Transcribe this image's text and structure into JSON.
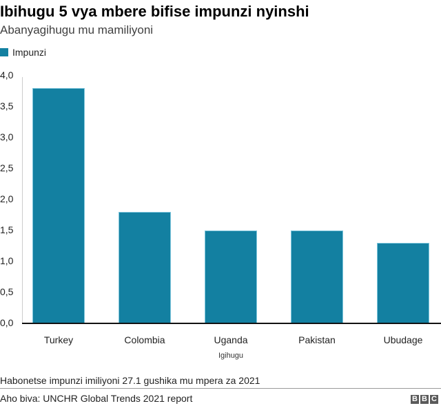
{
  "header": {
    "title": "Ibihugu 5 vya mbere bifise impunzi nyinshi",
    "subtitle": "Abanyagihugu mu mamiliyoni"
  },
  "legend": {
    "label": "Impunzi",
    "color": "#1380a1"
  },
  "footer": {
    "note": "Habonetse impunzi imiliyoni 27.1 gushika mu mpera za 2021",
    "source": "Aho biva: UNCHR Global Trends 2021 report",
    "logo_letters": [
      "B",
      "B",
      "C"
    ]
  },
  "chart_data": {
    "type": "bar",
    "title": "Ibihugu 5 vya mbere bifise impunzi nyinshi",
    "subtitle": "Abanyagihugu mu mamiliyoni",
    "categories": [
      "Turkey",
      "Colombia",
      "Uganda",
      "Pakistan",
      "Ubudage"
    ],
    "series": [
      {
        "name": "Impunzi",
        "values": [
          3.8,
          1.8,
          1.5,
          1.5,
          1.3
        ],
        "color": "#1380a1"
      }
    ],
    "xlabel": "Igihugu",
    "ylabel": "",
    "ylim": [
      0,
      4.0
    ],
    "yticks": [
      "0,0",
      "0,5",
      "1,0",
      "1,5",
      "2,0",
      "2,5",
      "3,0",
      "3,5",
      "4,0"
    ],
    "grid": false,
    "legend_position": "top-left"
  }
}
